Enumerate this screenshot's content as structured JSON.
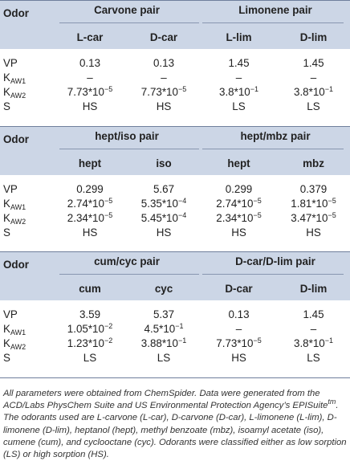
{
  "sections": [
    {
      "odor_label": "Odor",
      "groups": [
        "Carvone pair",
        "Limonene pair"
      ],
      "columns": [
        "L-car",
        "D-car",
        "L-lim",
        "D-lim"
      ],
      "rows": [
        {
          "label": "VP",
          "sub": "",
          "values": [
            {
              "m": "0.13",
              "e": ""
            },
            {
              "m": "0.13",
              "e": ""
            },
            {
              "m": "1.45",
              "e": ""
            },
            {
              "m": "1.45",
              "e": ""
            }
          ]
        },
        {
          "label": "K",
          "sub": "AW1",
          "values": [
            {
              "m": "–",
              "e": ""
            },
            {
              "m": "–",
              "e": ""
            },
            {
              "m": "–",
              "e": ""
            },
            {
              "m": "–",
              "e": ""
            }
          ]
        },
        {
          "label": "K",
          "sub": "AW2",
          "values": [
            {
              "m": "7.73*10",
              "e": "−5"
            },
            {
              "m": "7.73*10",
              "e": "−5"
            },
            {
              "m": "3.8*10",
              "e": "−1"
            },
            {
              "m": "3.8*10",
              "e": "−1"
            }
          ]
        },
        {
          "label": "S",
          "sub": "",
          "values": [
            {
              "m": "HS",
              "e": ""
            },
            {
              "m": "HS",
              "e": ""
            },
            {
              "m": "LS",
              "e": ""
            },
            {
              "m": "LS",
              "e": ""
            }
          ]
        }
      ]
    },
    {
      "odor_label": "Odor",
      "groups": [
        "hept/iso pair",
        "hept/mbz pair"
      ],
      "columns": [
        "hept",
        "iso",
        "hept",
        "mbz"
      ],
      "rows": [
        {
          "label": "VP",
          "sub": "",
          "values": [
            {
              "m": "0.299",
              "e": ""
            },
            {
              "m": "5.67",
              "e": ""
            },
            {
              "m": "0.299",
              "e": ""
            },
            {
              "m": "0.379",
              "e": ""
            }
          ]
        },
        {
          "label": "K",
          "sub": "AW1",
          "values": [
            {
              "m": "2.74*10",
              "e": "−5"
            },
            {
              "m": "5.35*10",
              "e": "−4"
            },
            {
              "m": "2.74*10",
              "e": "−5"
            },
            {
              "m": "1.81*10",
              "e": "−5"
            }
          ]
        },
        {
          "label": "K",
          "sub": "AW2",
          "values": [
            {
              "m": "2.34*10",
              "e": "−5"
            },
            {
              "m": "5.45*10",
              "e": "−4"
            },
            {
              "m": "2.34*10",
              "e": "−5"
            },
            {
              "m": "3.47*10",
              "e": "−5"
            }
          ]
        },
        {
          "label": "S",
          "sub": "",
          "values": [
            {
              "m": "HS",
              "e": ""
            },
            {
              "m": "HS",
              "e": ""
            },
            {
              "m": "HS",
              "e": ""
            },
            {
              "m": "HS",
              "e": ""
            }
          ]
        }
      ]
    },
    {
      "odor_label": "Odor",
      "groups": [
        "cum/cyc pair",
        "D-car/D-lim pair"
      ],
      "columns": [
        "cum",
        "cyc",
        "D-car",
        "D-lim"
      ],
      "rows": [
        {
          "label": "VP",
          "sub": "",
          "values": [
            {
              "m": "3.59",
              "e": ""
            },
            {
              "m": "5.37",
              "e": ""
            },
            {
              "m": "0.13",
              "e": ""
            },
            {
              "m": "1.45",
              "e": ""
            }
          ]
        },
        {
          "label": "K",
          "sub": "AW1",
          "values": [
            {
              "m": "1.05*10",
              "e": "−2"
            },
            {
              "m": "4.5*10",
              "e": "−1"
            },
            {
              "m": "–",
              "e": ""
            },
            {
              "m": "–",
              "e": ""
            }
          ]
        },
        {
          "label": "K",
          "sub": "AW2",
          "values": [
            {
              "m": "1.23*10",
              "e": "−2"
            },
            {
              "m": "3.88*10",
              "e": "−1"
            },
            {
              "m": "7.73*10",
              "e": "−5"
            },
            {
              "m": "3.8*10",
              "e": "−1"
            }
          ]
        },
        {
          "label": "S",
          "sub": "",
          "values": [
            {
              "m": "LS",
              "e": ""
            },
            {
              "m": "LS",
              "e": ""
            },
            {
              "m": "HS",
              "e": ""
            },
            {
              "m": "LS",
              "e": ""
            }
          ]
        }
      ]
    }
  ],
  "footnote": "All parameters were obtained from ChemSpider. Data were generated from the ACD/Labs PhysChem Suite and US Environmental Protection Agency’s EPISuite",
  "footnote_tm": "tm",
  "footnote_rest": ". The odorants used are L-carvone (L-car), D-carvone (D-car), L-limonene (L-lim), D-limonene (D-lim), heptanol (hept), methyl benzoate (mbz), isoamyl acetate (iso), cumene (cum), and cyclooctane (cyc). Odorants were classified either as low sorption (LS) or high sorption (HS)."
}
